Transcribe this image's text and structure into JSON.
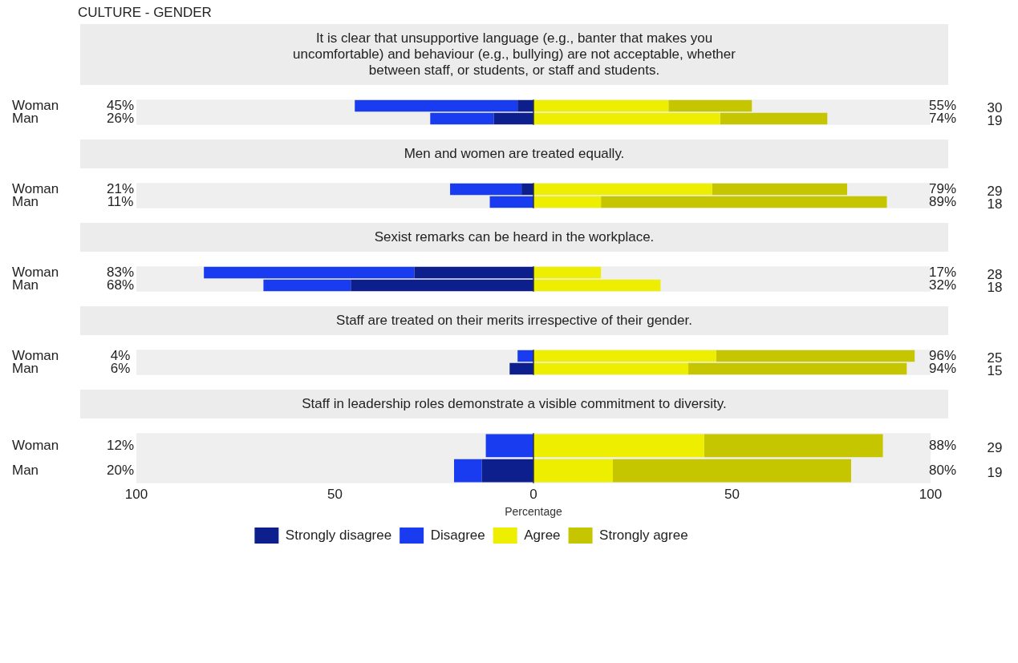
{
  "chart_data": [
    {
      "type": "bar",
      "orientation": "horizontal",
      "stacked": true,
      "title": "CULTURE - GENDER",
      "subtitle": "It is clear that unsupportive language (e.g., banter that makes you uncomfortable) and behaviour (e.g., bullying) are not acceptable, whether between staff, or students, or staff and students.",
      "categories": [
        "Woman",
        "Man"
      ],
      "xlim": [
        -100,
        100
      ],
      "tick_labels": "y",
      "grid": false,
      "series": [
        {
          "color": "#0c1f8c",
          "values": [
            -4,
            -10
          ]
        },
        {
          "color": "#1a3cf0",
          "values": [
            -41,
            -16
          ]
        },
        {
          "color": "#eeee00",
          "values": [
            34,
            47
          ]
        },
        {
          "color": "#c6c600",
          "values": [
            21,
            27
          ]
        }
      ],
      "ref_lines": [
        {
          "axis": "x",
          "value": 0,
          "color": "#333333"
        }
      ],
      "annotations": [
        "45%",
        "26%",
        "55%",
        "74%",
        "30",
        "19"
      ]
    },
    {
      "type": "bar",
      "orientation": "horizontal",
      "stacked": true,
      "title": "Men and women are treated equally.",
      "categories": [
        "Woman",
        "Man"
      ],
      "xlim": [
        -100,
        100
      ],
      "tick_labels": "y",
      "grid": false,
      "series": [
        {
          "color": "#0c1f8c",
          "values": [
            -3,
            0
          ]
        },
        {
          "color": "#1a3cf0",
          "values": [
            -18,
            -11
          ]
        },
        {
          "color": "#eeee00",
          "values": [
            45,
            17
          ]
        },
        {
          "color": "#c6c600",
          "values": [
            34,
            72
          ]
        }
      ],
      "ref_lines": [
        {
          "axis": "x",
          "value": 0,
          "color": "#333333"
        }
      ],
      "annotations": [
        "21%",
        "11%",
        "79%",
        "89%",
        "29",
        "18"
      ]
    },
    {
      "type": "bar",
      "orientation": "horizontal",
      "stacked": true,
      "title": "Sexist remarks can be heard in the workplace.",
      "categories": [
        "Woman",
        "Man"
      ],
      "xlim": [
        -100,
        100
      ],
      "tick_labels": "y",
      "grid": false,
      "series": [
        {
          "color": "#0c1f8c",
          "values": [
            -30,
            -46
          ]
        },
        {
          "color": "#1a3cf0",
          "values": [
            -53,
            -22
          ]
        },
        {
          "color": "#eeee00",
          "values": [
            17,
            32
          ]
        },
        {
          "color": "#c6c600",
          "values": [
            0,
            0
          ]
        }
      ],
      "ref_lines": [
        {
          "axis": "x",
          "value": 0,
          "color": "#333333"
        }
      ],
      "annotations": [
        "83%",
        "68%",
        "17%",
        "32%",
        "28",
        "18"
      ]
    },
    {
      "type": "bar",
      "orientation": "horizontal",
      "stacked": true,
      "title": "Staff are treated on their merits irrespective of their gender.",
      "categories": [
        "Woman",
        "Man"
      ],
      "xlim": [
        -100,
        100
      ],
      "tick_labels": "y",
      "grid": false,
      "series": [
        {
          "color": "#0c1f8c",
          "values": [
            0,
            -6
          ]
        },
        {
          "color": "#1a3cf0",
          "values": [
            -4,
            0
          ]
        },
        {
          "color": "#eeee00",
          "values": [
            46,
            39
          ]
        },
        {
          "color": "#c6c600",
          "values": [
            50,
            55
          ]
        }
      ],
      "ref_lines": [
        {
          "axis": "x",
          "value": 0,
          "color": "#333333"
        }
      ],
      "annotations": [
        "4%",
        "6%",
        "96%",
        "94%",
        "25",
        "15"
      ]
    },
    {
      "type": "bar",
      "orientation": "horizontal",
      "stacked": true,
      "title": "Staff in leadership roles demonstrate a visible commitment to diversity.",
      "categories": [
        "Woman",
        "Man"
      ],
      "xlim": [
        -100,
        100
      ],
      "xticks": [
        {
          "value": -100,
          "label": "100"
        },
        {
          "value": -50,
          "label": "50"
        },
        0,
        50,
        100
      ],
      "xlabel": "Percentage",
      "grid": false,
      "legend": "bottom",
      "series": [
        {
          "name": "Strongly disagree",
          "color": "#0c1f8c",
          "values": [
            0,
            -13
          ]
        },
        {
          "name": "Disagree",
          "color": "#1a3cf0",
          "values": [
            -12,
            -7
          ]
        },
        {
          "name": "Agree",
          "color": "#eeee00",
          "values": [
            43,
            20
          ]
        },
        {
          "name": "Strongly agree",
          "color": "#c6c600",
          "values": [
            45,
            60
          ]
        }
      ],
      "ref_lines": [
        {
          "axis": "x",
          "value": 0,
          "color": "#333333"
        }
      ],
      "annotations": [
        "12%",
        "20%",
        "88%",
        "80%",
        "29",
        "19"
      ]
    }
  ]
}
